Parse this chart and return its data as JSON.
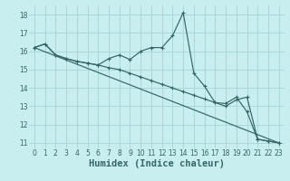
{
  "title": "",
  "xlabel": "Humidex (Indice chaleur)",
  "ylabel": "",
  "xlim": [
    -0.5,
    23.5
  ],
  "ylim": [
    10.7,
    18.5
  ],
  "yticks": [
    11,
    12,
    13,
    14,
    15,
    16,
    17,
    18
  ],
  "xticks": [
    0,
    1,
    2,
    3,
    4,
    5,
    6,
    7,
    8,
    9,
    10,
    11,
    12,
    13,
    14,
    15,
    16,
    17,
    18,
    19,
    20,
    21,
    22,
    23
  ],
  "background_color": "#c8eef0",
  "grid_color": "#aad8da",
  "line_color": "#336666",
  "lines": [
    {
      "x": [
        0,
        1,
        2,
        3,
        4,
        5,
        6,
        7,
        8,
        9,
        10,
        11,
        12,
        13,
        14,
        15,
        16,
        17,
        18,
        19,
        20,
        21,
        22,
        23
      ],
      "y": [
        16.2,
        16.4,
        15.8,
        15.6,
        15.45,
        15.35,
        15.25,
        15.6,
        15.8,
        15.55,
        16.0,
        16.2,
        16.2,
        16.85,
        18.1,
        14.8,
        14.1,
        13.2,
        13.15,
        13.5,
        12.7,
        11.2,
        11.1,
        11.0
      ]
    },
    {
      "x": [
        0,
        1,
        2,
        3,
        4,
        5,
        6,
        7,
        8,
        9,
        10,
        11,
        12,
        13,
        14,
        15,
        16,
        17,
        18,
        19,
        20,
        21,
        22,
        23
      ],
      "y": [
        16.2,
        16.4,
        15.8,
        15.6,
        15.45,
        15.35,
        15.25,
        15.1,
        15.0,
        14.8,
        14.6,
        14.4,
        14.2,
        14.0,
        13.8,
        13.6,
        13.4,
        13.2,
        13.0,
        13.35,
        13.5,
        11.2,
        11.1,
        11.0
      ]
    },
    {
      "x": [
        0,
        23
      ],
      "y": [
        16.2,
        11.0
      ]
    }
  ],
  "font_color": "#336666",
  "tick_fontsize": 5.5,
  "label_fontsize": 7.5
}
